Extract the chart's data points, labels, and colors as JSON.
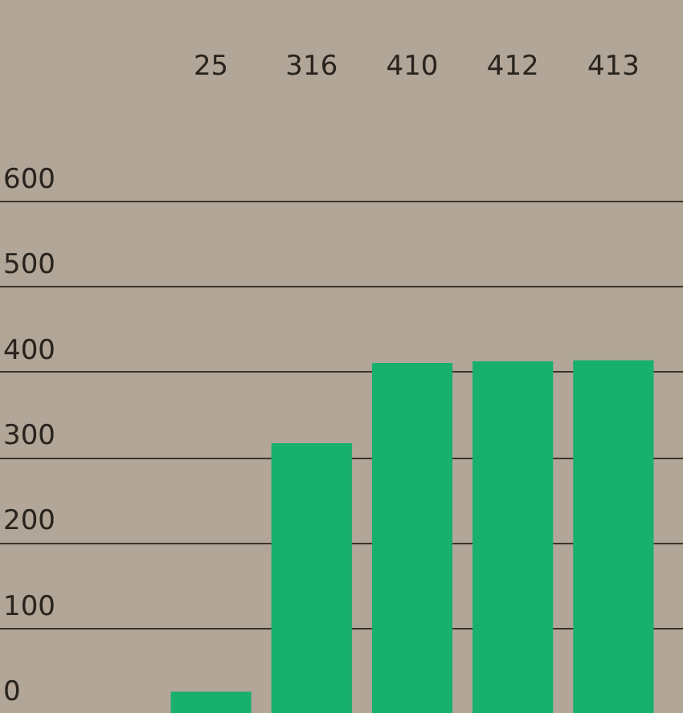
{
  "chart_data": {
    "type": "bar",
    "categories": [
      null,
      null,
      null,
      null,
      null
    ],
    "values": [
      25,
      316,
      410,
      412,
      413
    ],
    "color": "#17b06c",
    "ylim": [
      0,
      600
    ],
    "yticks": [
      0,
      100,
      200,
      300,
      400,
      500,
      600
    ],
    "grid": "y",
    "data_labels": true
  }
}
